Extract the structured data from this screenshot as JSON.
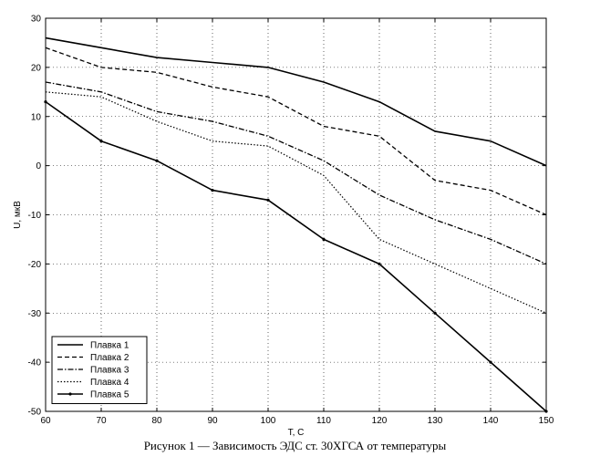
{
  "chart_data": {
    "type": "line",
    "title": "",
    "xlabel": "T, C",
    "ylabel": "U, мкВ",
    "xlim": [
      60,
      150
    ],
    "ylim": [
      -50,
      30
    ],
    "grid": true,
    "x": [
      60,
      70,
      80,
      90,
      100,
      110,
      120,
      130,
      140,
      150
    ],
    "x_ticks": [
      60,
      70,
      80,
      90,
      100,
      110,
      120,
      130,
      140,
      150
    ],
    "y_ticks": [
      -50,
      -40,
      -30,
      -20,
      -10,
      0,
      10,
      20,
      30
    ],
    "legend_position": "bottom-left",
    "series": [
      {
        "name": "Плавка 1",
        "style": "solid",
        "values": [
          26,
          24,
          22,
          21,
          20,
          17,
          13,
          7,
          5,
          0
        ]
      },
      {
        "name": "Плавка 2",
        "style": "dashed",
        "values": [
          24,
          20,
          19,
          16,
          14,
          8,
          6,
          -3,
          -5,
          -10
        ]
      },
      {
        "name": "Плавка 3",
        "style": "dashdot",
        "values": [
          17,
          15,
          11,
          9,
          6,
          1,
          -6,
          -11,
          -15,
          -20
        ]
      },
      {
        "name": "Плавка 4",
        "style": "dotted",
        "values": [
          15,
          14,
          9,
          5,
          4,
          -2,
          -15,
          -20,
          -25,
          -30
        ]
      },
      {
        "name": "Плавка 5",
        "style": "solid-marker",
        "values": [
          13,
          5,
          1,
          -5,
          -7,
          -15,
          -20,
          -30,
          -40,
          -50
        ]
      }
    ]
  },
  "caption": "Рисунок 1 — Зависимость ЭДС ст. 30ХГСА от температуры"
}
